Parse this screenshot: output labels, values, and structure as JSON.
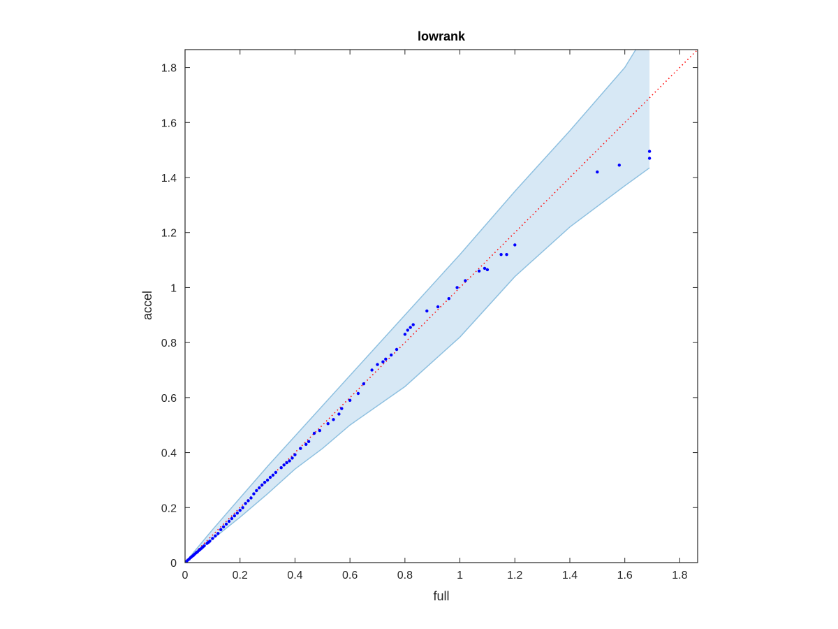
{
  "chart_data": {
    "type": "scatter",
    "title": "lowrank",
    "xlabel": "full",
    "ylabel": "accel",
    "xlim": [
      0,
      1.865
    ],
    "ylim": [
      0,
      1.865
    ],
    "xticks": [
      0,
      0.2,
      0.4,
      0.6,
      0.8,
      1,
      1.2,
      1.4,
      1.6,
      1.8
    ],
    "yticks": [
      0,
      0.2,
      0.4,
      0.6,
      0.8,
      1,
      1.2,
      1.4,
      1.6,
      1.8
    ],
    "xtick_labels": [
      "0",
      "0.2",
      "0.4",
      "0.6",
      "0.8",
      "1",
      "1.2",
      "1.4",
      "1.6",
      "1.8"
    ],
    "ytick_labels": [
      "0",
      "0.2",
      "0.4",
      "0.6",
      "0.8",
      "1",
      "1.2",
      "1.4",
      "1.6",
      "1.8"
    ],
    "grid": false,
    "colors": {
      "points": "#0000ff",
      "reference_line": "#ff0000",
      "band_fill": "#d7e8f5",
      "band_edge": "#8ec0e0",
      "axis": "#262626"
    },
    "reference_line": {
      "from": [
        0,
        0
      ],
      "to": [
        1.865,
        1.865
      ],
      "style": "dotted"
    },
    "band": {
      "upper": [
        [
          0,
          0
        ],
        [
          0.1,
          0.12
        ],
        [
          0.2,
          0.235
        ],
        [
          0.3,
          0.35
        ],
        [
          0.4,
          0.46
        ],
        [
          0.6,
          0.68
        ],
        [
          0.8,
          0.9
        ],
        [
          1.0,
          1.12
        ],
        [
          1.2,
          1.35
        ],
        [
          1.4,
          1.57
        ],
        [
          1.6,
          1.8
        ],
        [
          1.64,
          1.865
        ]
      ],
      "upper_cap": [
        [
          1.64,
          1.865
        ],
        [
          1.69,
          1.865
        ]
      ],
      "lower": [
        [
          0,
          0
        ],
        [
          0.1,
          0.085
        ],
        [
          0.2,
          0.165
        ],
        [
          0.3,
          0.25
        ],
        [
          0.4,
          0.34
        ],
        [
          0.5,
          0.415
        ],
        [
          0.6,
          0.5
        ],
        [
          0.8,
          0.64
        ],
        [
          1.0,
          0.82
        ],
        [
          1.2,
          1.04
        ],
        [
          1.4,
          1.22
        ],
        [
          1.6,
          1.37
        ],
        [
          1.69,
          1.435
        ]
      ],
      "x_end": 1.69
    },
    "points": {
      "x": [
        0.005,
        0.01,
        0.015,
        0.02,
        0.025,
        0.03,
        0.035,
        0.04,
        0.045,
        0.05,
        0.055,
        0.06,
        0.065,
        0.07,
        0.08,
        0.085,
        0.09,
        0.1,
        0.11,
        0.12,
        0.13,
        0.14,
        0.15,
        0.16,
        0.17,
        0.18,
        0.19,
        0.2,
        0.21,
        0.22,
        0.23,
        0.24,
        0.25,
        0.26,
        0.27,
        0.28,
        0.29,
        0.3,
        0.31,
        0.32,
        0.33,
        0.35,
        0.36,
        0.37,
        0.38,
        0.39,
        0.4,
        0.42,
        0.44,
        0.45,
        0.47,
        0.49,
        0.52,
        0.54,
        0.56,
        0.57,
        0.6,
        0.63,
        0.65,
        0.68,
        0.7,
        0.72,
        0.73,
        0.75,
        0.77,
        0.8,
        0.81,
        0.82,
        0.83,
        0.88,
        0.92,
        0.96,
        0.99,
        1.02,
        1.07,
        1.09,
        1.1,
        1.15,
        1.17,
        1.2,
        1.5,
        1.58,
        1.69,
        1.69
      ],
      "y": [
        0.004,
        0.009,
        0.013,
        0.018,
        0.022,
        0.026,
        0.031,
        0.035,
        0.039,
        0.044,
        0.048,
        0.052,
        0.057,
        0.061,
        0.07,
        0.074,
        0.078,
        0.088,
        0.097,
        0.106,
        0.12,
        0.13,
        0.14,
        0.15,
        0.16,
        0.17,
        0.18,
        0.19,
        0.2,
        0.215,
        0.225,
        0.235,
        0.25,
        0.262,
        0.272,
        0.282,
        0.292,
        0.3,
        0.31,
        0.318,
        0.328,
        0.345,
        0.355,
        0.363,
        0.37,
        0.38,
        0.392,
        0.415,
        0.43,
        0.44,
        0.47,
        0.48,
        0.505,
        0.52,
        0.54,
        0.56,
        0.59,
        0.615,
        0.65,
        0.7,
        0.72,
        0.73,
        0.74,
        0.755,
        0.775,
        0.83,
        0.845,
        0.855,
        0.865,
        0.915,
        0.93,
        0.96,
        1.0,
        1.025,
        1.06,
        1.07,
        1.065,
        1.12,
        1.12,
        1.155,
        1.42,
        1.445,
        1.47,
        1.495
      ]
    }
  }
}
